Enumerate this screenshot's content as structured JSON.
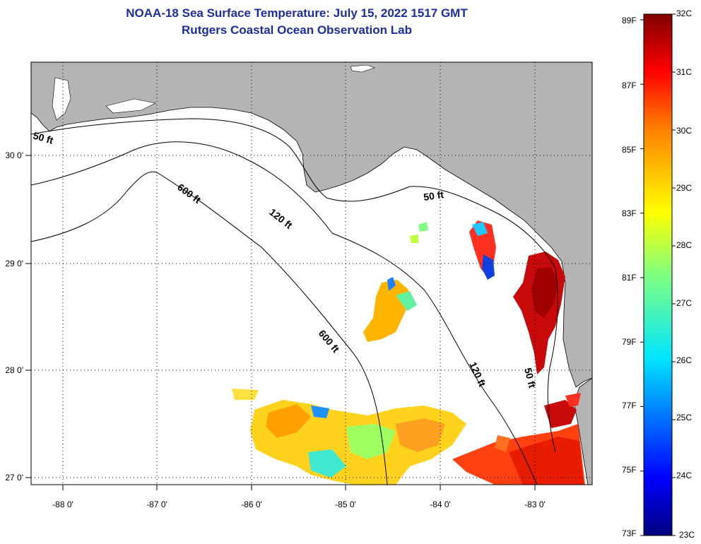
{
  "header": {
    "title": "NOAA-18 Sea Surface Temperature:  July 15, 2022 1517 GMT",
    "subtitle": "Rutgers Coastal Ocean Observation Lab"
  },
  "map": {
    "lon_labels": [
      "-88 0'",
      "-87 0'",
      "-86 0'",
      "-85 0'",
      "-84 0'",
      "-83 0'"
    ],
    "lat_labels": [
      "30 0'",
      "29 0'",
      "28 0'",
      "27 0'"
    ],
    "depth_labels": {
      "ft50_a": "50 ft",
      "ft50_b": "50 ft",
      "ft50_c": "50 ft",
      "ft120_a": "120 ft",
      "ft120_b": "120 ft",
      "ft600_a": "600 ft",
      "ft600_b": "600 ft"
    },
    "colors": {
      "land": "#b4b4b4",
      "ocean": "#ffffff"
    }
  },
  "colorbar": {
    "fahrenheit": [
      "89F",
      "87F",
      "85F",
      "83F",
      "81F",
      "79F",
      "77F",
      "75F",
      "73F"
    ],
    "celsius": [
      "32C",
      "31C",
      "30C",
      "29C",
      "28C",
      "27C",
      "26C",
      "25C",
      "24C",
      "23C"
    ],
    "range_celsius": [
      23,
      32
    ]
  }
}
